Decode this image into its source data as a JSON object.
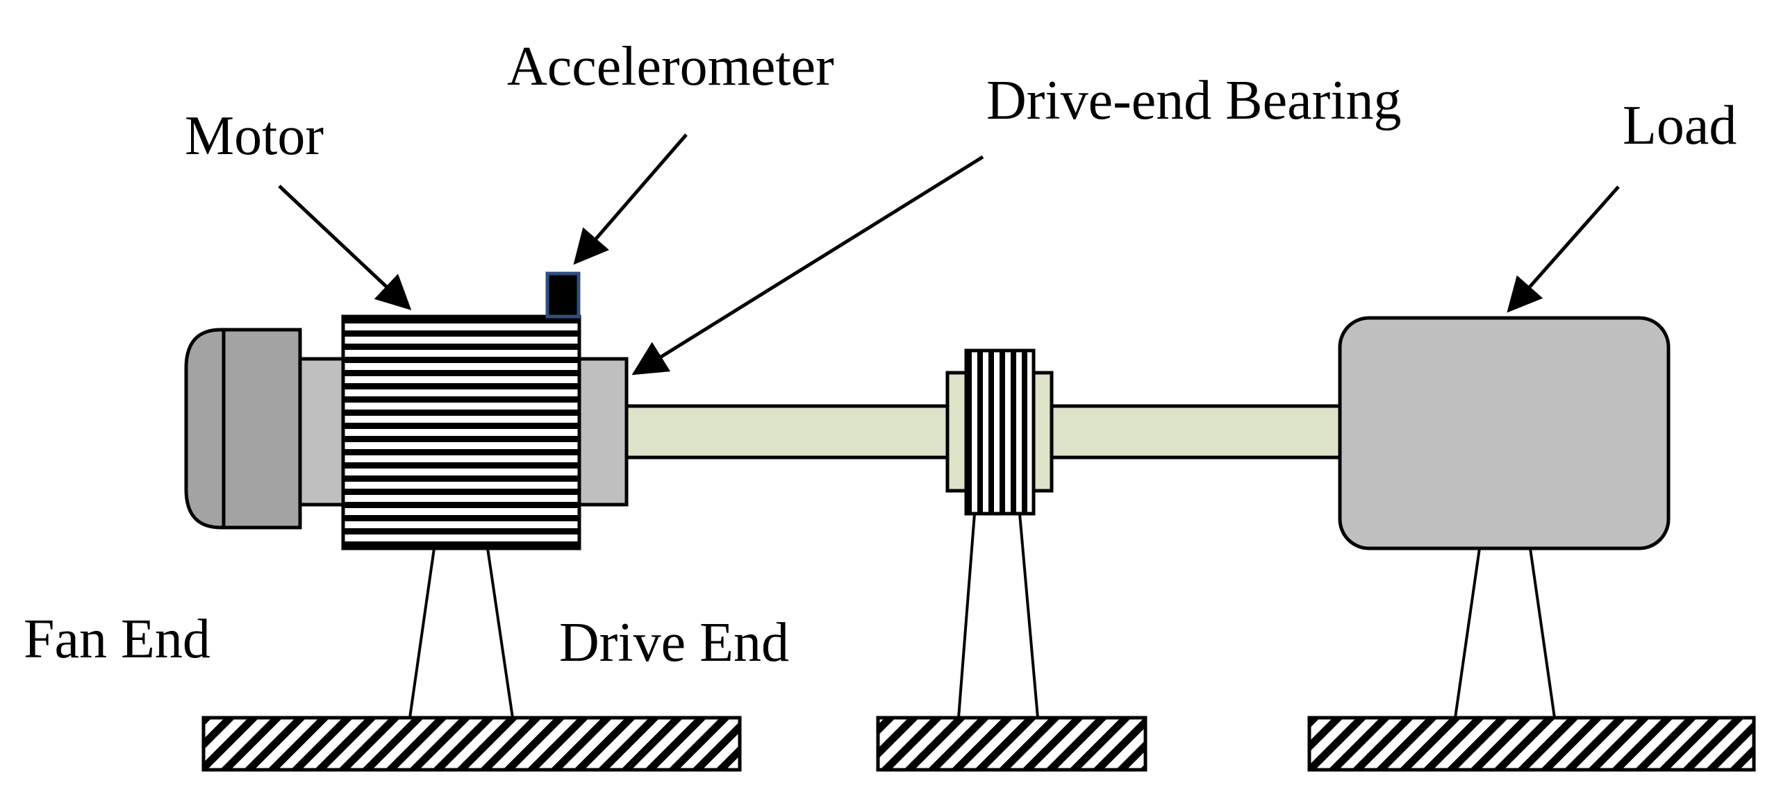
{
  "labels": {
    "motor": "Motor",
    "accelerometer": "Accelerometer",
    "drive_end_bearing": "Drive-end Bearing",
    "load": "Load",
    "fan_end": "Fan End",
    "drive_end": "Drive End"
  },
  "colors": {
    "fan_cover": "#a3a3a3",
    "motor_end_cap": "#bfbfbf",
    "shaft": "#dce3c9",
    "load": "#bfbfbf",
    "sensor": "#000000",
    "sensor_border": "#2f4f80",
    "stroke": "#000000"
  }
}
